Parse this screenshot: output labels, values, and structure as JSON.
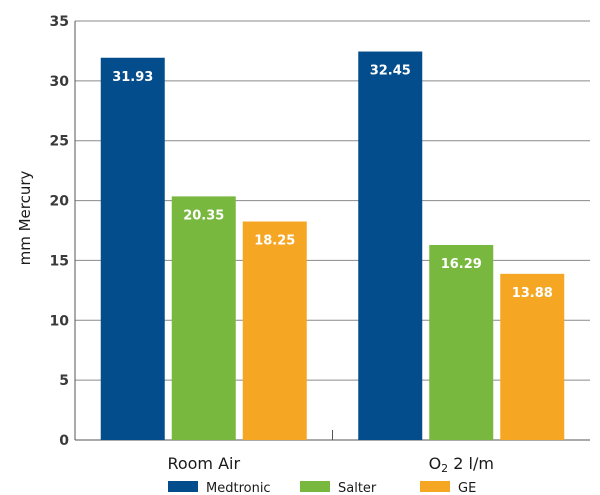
{
  "chart_data": {
    "type": "bar",
    "title": "",
    "xlabel": "",
    "ylabel": "mm Mercury",
    "ylim": [
      0,
      35
    ],
    "yticks": [
      0,
      5,
      10,
      15,
      20,
      25,
      30,
      35
    ],
    "grid": true,
    "legend_position": "bottom",
    "categories": [
      {
        "label": "Room Air",
        "base": "",
        "sub": "",
        "rest": ""
      },
      {
        "label": "",
        "base": "O",
        "sub": "2",
        "rest": " 2 l/m"
      }
    ],
    "series": [
      {
        "name": "Medtronic",
        "color": "#044d8c",
        "values": [
          31.93,
          32.45
        ],
        "labels": [
          "31.93",
          "32.45"
        ]
      },
      {
        "name": "Salter",
        "color": "#78b83f",
        "values": [
          20.35,
          16.29
        ],
        "labels": [
          "20.35",
          "16.29"
        ]
      },
      {
        "name": "GE",
        "color": "#f5a623",
        "values": [
          18.25,
          13.88
        ],
        "labels": [
          "18.25",
          "13.88"
        ]
      }
    ]
  }
}
